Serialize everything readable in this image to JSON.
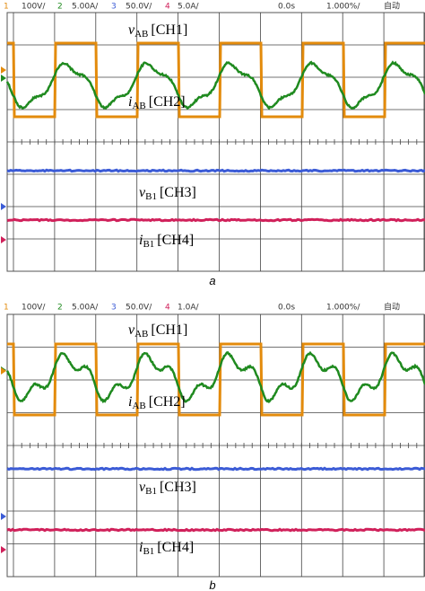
{
  "panels": [
    {
      "header": {
        "ch1": "1",
        "ch1_scale": "100V/",
        "ch2": "2",
        "ch2_scale": "5.00A/",
        "ch3": "3",
        "ch3_scale": "50.0V/",
        "ch4": "4",
        "ch4_scale": "5.0A/",
        "time_offset": "0.0s",
        "time_scale": "1.000%/",
        "mode": "自动"
      },
      "labels": [
        {
          "symbol": "v",
          "sub": "AB",
          "tag": "[CH1]"
        },
        {
          "symbol": "i",
          "sub": "AB",
          "tag": "[CH2]"
        },
        {
          "symbol": "v",
          "sub": "B1",
          "tag": "[CH3]"
        },
        {
          "symbol": "i",
          "sub": "B1",
          "tag": "[CH4]"
        }
      ],
      "caption": "a"
    },
    {
      "header": {
        "ch1": "1",
        "ch1_scale": "100V/",
        "ch2": "2",
        "ch2_scale": "5.00A/",
        "ch3": "3",
        "ch3_scale": "50.0V/",
        "ch4": "4",
        "ch4_scale": "1.0A/",
        "time_offset": "0.0s",
        "time_scale": "1.000%/",
        "mode": "自动"
      },
      "labels": [
        {
          "symbol": "v",
          "sub": "AB",
          "tag": "[CH1]"
        },
        {
          "symbol": "i",
          "sub": "AB",
          "tag": "[CH2]"
        },
        {
          "symbol": "v",
          "sub": "B1",
          "tag": "[CH3]"
        },
        {
          "symbol": "i",
          "sub": "B1",
          "tag": "[CH4]"
        }
      ],
      "caption": "b"
    }
  ]
}
